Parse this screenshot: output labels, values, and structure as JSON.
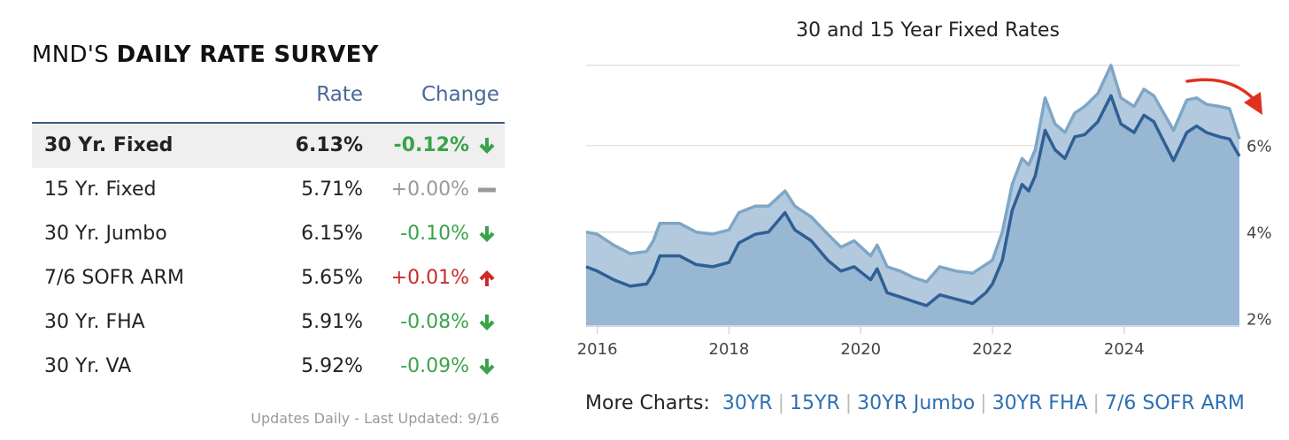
{
  "survey": {
    "title_prefix": "MND'S",
    "title_bold": "DAILY RATE SURVEY",
    "col_rate": "Rate",
    "col_change": "Change",
    "rows": [
      {
        "name": "30 Yr. Fixed",
        "rate": "6.13%",
        "change": "-0.12%",
        "dir": "down"
      },
      {
        "name": "15 Yr. Fixed",
        "rate": "5.71%",
        "change": "+0.00%",
        "dir": "flat"
      },
      {
        "name": "30 Yr. Jumbo",
        "rate": "6.15%",
        "change": "-0.10%",
        "dir": "down"
      },
      {
        "name": "7/6 SOFR ARM",
        "rate": "5.65%",
        "change": "+0.01%",
        "dir": "up"
      },
      {
        "name": "30 Yr. FHA",
        "rate": "5.91%",
        "change": "-0.08%",
        "dir": "down"
      },
      {
        "name": "30 Yr. VA",
        "rate": "5.92%",
        "change": "-0.09%",
        "dir": "down"
      }
    ],
    "footer": "Updates Daily - Last Updated: 9/16"
  },
  "colors": {
    "down": "#3aa34a",
    "up": "#cc2a2a",
    "flat": "#999999",
    "series_30yr": "#7ea6c6",
    "series_15yr": "#2f5f95",
    "annotation_arrow": "#e0301e"
  },
  "more_charts": {
    "label": "More Charts:",
    "links": [
      "30YR",
      "15YR",
      "30YR Jumbo",
      "30YR FHA",
      "7/6 SOFR ARM"
    ]
  },
  "chart_data": {
    "type": "area",
    "title": "30 and 15 Year Fixed Rates",
    "x_ticks": [
      "2016",
      "2018",
      "2020",
      "2022",
      "2024"
    ],
    "y_ticks": [
      "2%",
      "4%",
      "6%"
    ],
    "xlim": [
      2015.83,
      2025.75
    ],
    "ylim": [
      1.85,
      7.85
    ],
    "y_axis_position": "right",
    "grid": "horizontal",
    "annotation": "curved red arrow pointing down, top-right",
    "series": [
      {
        "values": [
          [
            2015.83,
            4.0
          ],
          [
            2016.0,
            3.95
          ],
          [
            2016.25,
            3.7
          ],
          [
            2016.5,
            3.5
          ],
          [
            2016.75,
            3.55
          ],
          [
            2016.85,
            3.8
          ],
          [
            2016.95,
            4.2
          ],
          [
            2017.25,
            4.2
          ],
          [
            2017.5,
            4.0
          ],
          [
            2017.75,
            3.95
          ],
          [
            2018.0,
            4.05
          ],
          [
            2018.15,
            4.45
          ],
          [
            2018.4,
            4.6
          ],
          [
            2018.6,
            4.6
          ],
          [
            2018.85,
            4.95
          ],
          [
            2019.0,
            4.6
          ],
          [
            2019.25,
            4.35
          ],
          [
            2019.5,
            3.95
          ],
          [
            2019.7,
            3.65
          ],
          [
            2019.9,
            3.8
          ],
          [
            2020.15,
            3.45
          ],
          [
            2020.25,
            3.7
          ],
          [
            2020.4,
            3.2
          ],
          [
            2020.6,
            3.1
          ],
          [
            2020.8,
            2.95
          ],
          [
            2021.0,
            2.85
          ],
          [
            2021.2,
            3.2
          ],
          [
            2021.45,
            3.1
          ],
          [
            2021.7,
            3.05
          ],
          [
            2021.9,
            3.25
          ],
          [
            2022.0,
            3.35
          ],
          [
            2022.15,
            4.0
          ],
          [
            2022.3,
            5.1
          ],
          [
            2022.45,
            5.7
          ],
          [
            2022.55,
            5.55
          ],
          [
            2022.65,
            5.9
          ],
          [
            2022.8,
            7.1
          ],
          [
            2022.95,
            6.5
          ],
          [
            2023.1,
            6.3
          ],
          [
            2023.25,
            6.75
          ],
          [
            2023.4,
            6.9
          ],
          [
            2023.6,
            7.2
          ],
          [
            2023.8,
            7.85
          ],
          [
            2023.95,
            7.1
          ],
          [
            2024.15,
            6.9
          ],
          [
            2024.3,
            7.3
          ],
          [
            2024.45,
            7.15
          ],
          [
            2024.6,
            6.75
          ],
          [
            2024.75,
            6.35
          ],
          [
            2024.95,
            7.05
          ],
          [
            2025.1,
            7.1
          ],
          [
            2025.25,
            6.95
          ],
          [
            2025.45,
            6.9
          ],
          [
            2025.6,
            6.85
          ],
          [
            2025.75,
            6.15
          ]
        ]
      },
      {
        "values": [
          [
            2015.83,
            3.2
          ],
          [
            2016.0,
            3.1
          ],
          [
            2016.25,
            2.9
          ],
          [
            2016.5,
            2.75
          ],
          [
            2016.75,
            2.8
          ],
          [
            2016.85,
            3.05
          ],
          [
            2016.95,
            3.45
          ],
          [
            2017.25,
            3.45
          ],
          [
            2017.5,
            3.25
          ],
          [
            2017.75,
            3.2
          ],
          [
            2018.0,
            3.3
          ],
          [
            2018.15,
            3.75
          ],
          [
            2018.4,
            3.95
          ],
          [
            2018.6,
            4.0
          ],
          [
            2018.85,
            4.45
          ],
          [
            2019.0,
            4.05
          ],
          [
            2019.25,
            3.8
          ],
          [
            2019.5,
            3.35
          ],
          [
            2019.7,
            3.1
          ],
          [
            2019.9,
            3.2
          ],
          [
            2020.15,
            2.9
          ],
          [
            2020.25,
            3.15
          ],
          [
            2020.4,
            2.6
          ],
          [
            2020.6,
            2.5
          ],
          [
            2020.8,
            2.4
          ],
          [
            2021.0,
            2.3
          ],
          [
            2021.2,
            2.55
          ],
          [
            2021.45,
            2.45
          ],
          [
            2021.7,
            2.35
          ],
          [
            2021.9,
            2.6
          ],
          [
            2022.0,
            2.8
          ],
          [
            2022.15,
            3.35
          ],
          [
            2022.3,
            4.5
          ],
          [
            2022.45,
            5.1
          ],
          [
            2022.55,
            4.95
          ],
          [
            2022.65,
            5.3
          ],
          [
            2022.8,
            6.35
          ],
          [
            2022.95,
            5.9
          ],
          [
            2023.1,
            5.7
          ],
          [
            2023.25,
            6.2
          ],
          [
            2023.4,
            6.25
          ],
          [
            2023.6,
            6.55
          ],
          [
            2023.8,
            7.15
          ],
          [
            2023.95,
            6.5
          ],
          [
            2024.15,
            6.3
          ],
          [
            2024.3,
            6.7
          ],
          [
            2024.45,
            6.55
          ],
          [
            2024.6,
            6.1
          ],
          [
            2024.75,
            5.65
          ],
          [
            2024.95,
            6.3
          ],
          [
            2025.1,
            6.45
          ],
          [
            2025.25,
            6.3
          ],
          [
            2025.45,
            6.2
          ],
          [
            2025.6,
            6.15
          ],
          [
            2025.75,
            5.75
          ]
        ]
      }
    ]
  }
}
